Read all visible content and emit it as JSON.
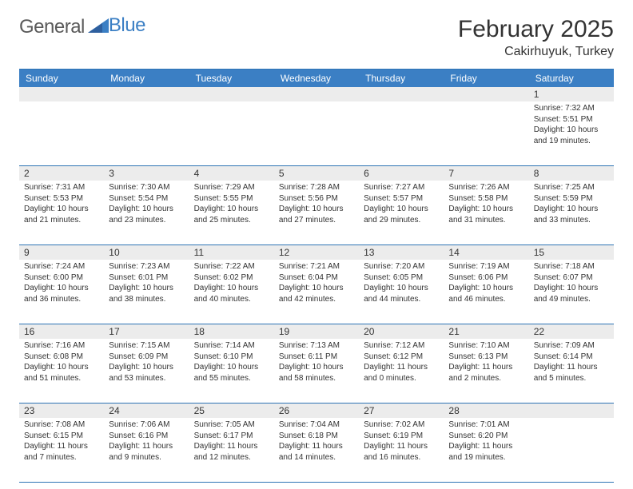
{
  "logo": {
    "text1": "General",
    "text2": "Blue"
  },
  "title": "February 2025",
  "location": "Cakirhuyuk, Turkey",
  "colors": {
    "header_bg": "#3b7fc4",
    "header_text": "#ffffff",
    "border": "#2e74b5",
    "daynum_bg": "#ececec",
    "body_text": "#333333"
  },
  "dayHeaders": [
    "Sunday",
    "Monday",
    "Tuesday",
    "Wednesday",
    "Thursday",
    "Friday",
    "Saturday"
  ],
  "weeks": [
    [
      {
        "n": "",
        "sr": "",
        "ss": "",
        "d1": "",
        "d2": ""
      },
      {
        "n": "",
        "sr": "",
        "ss": "",
        "d1": "",
        "d2": ""
      },
      {
        "n": "",
        "sr": "",
        "ss": "",
        "d1": "",
        "d2": ""
      },
      {
        "n": "",
        "sr": "",
        "ss": "",
        "d1": "",
        "d2": ""
      },
      {
        "n": "",
        "sr": "",
        "ss": "",
        "d1": "",
        "d2": ""
      },
      {
        "n": "",
        "sr": "",
        "ss": "",
        "d1": "",
        "d2": ""
      },
      {
        "n": "1",
        "sr": "Sunrise: 7:32 AM",
        "ss": "Sunset: 5:51 PM",
        "d1": "Daylight: 10 hours",
        "d2": "and 19 minutes."
      }
    ],
    [
      {
        "n": "2",
        "sr": "Sunrise: 7:31 AM",
        "ss": "Sunset: 5:53 PM",
        "d1": "Daylight: 10 hours",
        "d2": "and 21 minutes."
      },
      {
        "n": "3",
        "sr": "Sunrise: 7:30 AM",
        "ss": "Sunset: 5:54 PM",
        "d1": "Daylight: 10 hours",
        "d2": "and 23 minutes."
      },
      {
        "n": "4",
        "sr": "Sunrise: 7:29 AM",
        "ss": "Sunset: 5:55 PM",
        "d1": "Daylight: 10 hours",
        "d2": "and 25 minutes."
      },
      {
        "n": "5",
        "sr": "Sunrise: 7:28 AM",
        "ss": "Sunset: 5:56 PM",
        "d1": "Daylight: 10 hours",
        "d2": "and 27 minutes."
      },
      {
        "n": "6",
        "sr": "Sunrise: 7:27 AM",
        "ss": "Sunset: 5:57 PM",
        "d1": "Daylight: 10 hours",
        "d2": "and 29 minutes."
      },
      {
        "n": "7",
        "sr": "Sunrise: 7:26 AM",
        "ss": "Sunset: 5:58 PM",
        "d1": "Daylight: 10 hours",
        "d2": "and 31 minutes."
      },
      {
        "n": "8",
        "sr": "Sunrise: 7:25 AM",
        "ss": "Sunset: 5:59 PM",
        "d1": "Daylight: 10 hours",
        "d2": "and 33 minutes."
      }
    ],
    [
      {
        "n": "9",
        "sr": "Sunrise: 7:24 AM",
        "ss": "Sunset: 6:00 PM",
        "d1": "Daylight: 10 hours",
        "d2": "and 36 minutes."
      },
      {
        "n": "10",
        "sr": "Sunrise: 7:23 AM",
        "ss": "Sunset: 6:01 PM",
        "d1": "Daylight: 10 hours",
        "d2": "and 38 minutes."
      },
      {
        "n": "11",
        "sr": "Sunrise: 7:22 AM",
        "ss": "Sunset: 6:02 PM",
        "d1": "Daylight: 10 hours",
        "d2": "and 40 minutes."
      },
      {
        "n": "12",
        "sr": "Sunrise: 7:21 AM",
        "ss": "Sunset: 6:04 PM",
        "d1": "Daylight: 10 hours",
        "d2": "and 42 minutes."
      },
      {
        "n": "13",
        "sr": "Sunrise: 7:20 AM",
        "ss": "Sunset: 6:05 PM",
        "d1": "Daylight: 10 hours",
        "d2": "and 44 minutes."
      },
      {
        "n": "14",
        "sr": "Sunrise: 7:19 AM",
        "ss": "Sunset: 6:06 PM",
        "d1": "Daylight: 10 hours",
        "d2": "and 46 minutes."
      },
      {
        "n": "15",
        "sr": "Sunrise: 7:18 AM",
        "ss": "Sunset: 6:07 PM",
        "d1": "Daylight: 10 hours",
        "d2": "and 49 minutes."
      }
    ],
    [
      {
        "n": "16",
        "sr": "Sunrise: 7:16 AM",
        "ss": "Sunset: 6:08 PM",
        "d1": "Daylight: 10 hours",
        "d2": "and 51 minutes."
      },
      {
        "n": "17",
        "sr": "Sunrise: 7:15 AM",
        "ss": "Sunset: 6:09 PM",
        "d1": "Daylight: 10 hours",
        "d2": "and 53 minutes."
      },
      {
        "n": "18",
        "sr": "Sunrise: 7:14 AM",
        "ss": "Sunset: 6:10 PM",
        "d1": "Daylight: 10 hours",
        "d2": "and 55 minutes."
      },
      {
        "n": "19",
        "sr": "Sunrise: 7:13 AM",
        "ss": "Sunset: 6:11 PM",
        "d1": "Daylight: 10 hours",
        "d2": "and 58 minutes."
      },
      {
        "n": "20",
        "sr": "Sunrise: 7:12 AM",
        "ss": "Sunset: 6:12 PM",
        "d1": "Daylight: 11 hours",
        "d2": "and 0 minutes."
      },
      {
        "n": "21",
        "sr": "Sunrise: 7:10 AM",
        "ss": "Sunset: 6:13 PM",
        "d1": "Daylight: 11 hours",
        "d2": "and 2 minutes."
      },
      {
        "n": "22",
        "sr": "Sunrise: 7:09 AM",
        "ss": "Sunset: 6:14 PM",
        "d1": "Daylight: 11 hours",
        "d2": "and 5 minutes."
      }
    ],
    [
      {
        "n": "23",
        "sr": "Sunrise: 7:08 AM",
        "ss": "Sunset: 6:15 PM",
        "d1": "Daylight: 11 hours",
        "d2": "and 7 minutes."
      },
      {
        "n": "24",
        "sr": "Sunrise: 7:06 AM",
        "ss": "Sunset: 6:16 PM",
        "d1": "Daylight: 11 hours",
        "d2": "and 9 minutes."
      },
      {
        "n": "25",
        "sr": "Sunrise: 7:05 AM",
        "ss": "Sunset: 6:17 PM",
        "d1": "Daylight: 11 hours",
        "d2": "and 12 minutes."
      },
      {
        "n": "26",
        "sr": "Sunrise: 7:04 AM",
        "ss": "Sunset: 6:18 PM",
        "d1": "Daylight: 11 hours",
        "d2": "and 14 minutes."
      },
      {
        "n": "27",
        "sr": "Sunrise: 7:02 AM",
        "ss": "Sunset: 6:19 PM",
        "d1": "Daylight: 11 hours",
        "d2": "and 16 minutes."
      },
      {
        "n": "28",
        "sr": "Sunrise: 7:01 AM",
        "ss": "Sunset: 6:20 PM",
        "d1": "Daylight: 11 hours",
        "d2": "and 19 minutes."
      },
      {
        "n": "",
        "sr": "",
        "ss": "",
        "d1": "",
        "d2": ""
      }
    ]
  ]
}
